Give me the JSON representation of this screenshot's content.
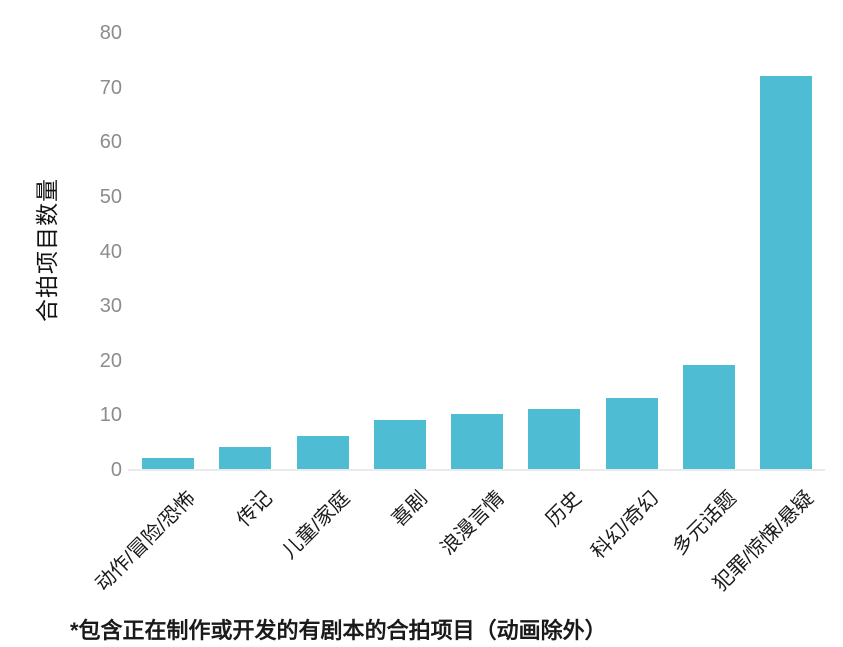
{
  "chart_data": {
    "type": "bar",
    "title": "",
    "xlabel": "",
    "ylabel": "合拍项目数量",
    "categories": [
      "动作/冒险/恐怖",
      "传记",
      "儿童/家庭",
      "喜剧",
      "浪漫言情",
      "历史",
      "科幻/奇幻",
      "多元话题",
      "犯罪/惊悚/悬疑"
    ],
    "values": [
      2,
      4,
      6,
      9,
      10,
      11,
      13,
      19,
      72
    ],
    "yticks": [
      0,
      10,
      20,
      30,
      40,
      50,
      60,
      70,
      80
    ],
    "ylim": [
      0,
      80
    ],
    "grid": false,
    "legend": "none",
    "bar_color": "#4ebdd3",
    "axis_line_color": "#eaeaea",
    "tick_label_color": "#8c8c8c",
    "category_label_color": "#1a1a1a",
    "footnote": "*包含正在制作或开发的有剧本的合拍项目（动画除外）"
  }
}
